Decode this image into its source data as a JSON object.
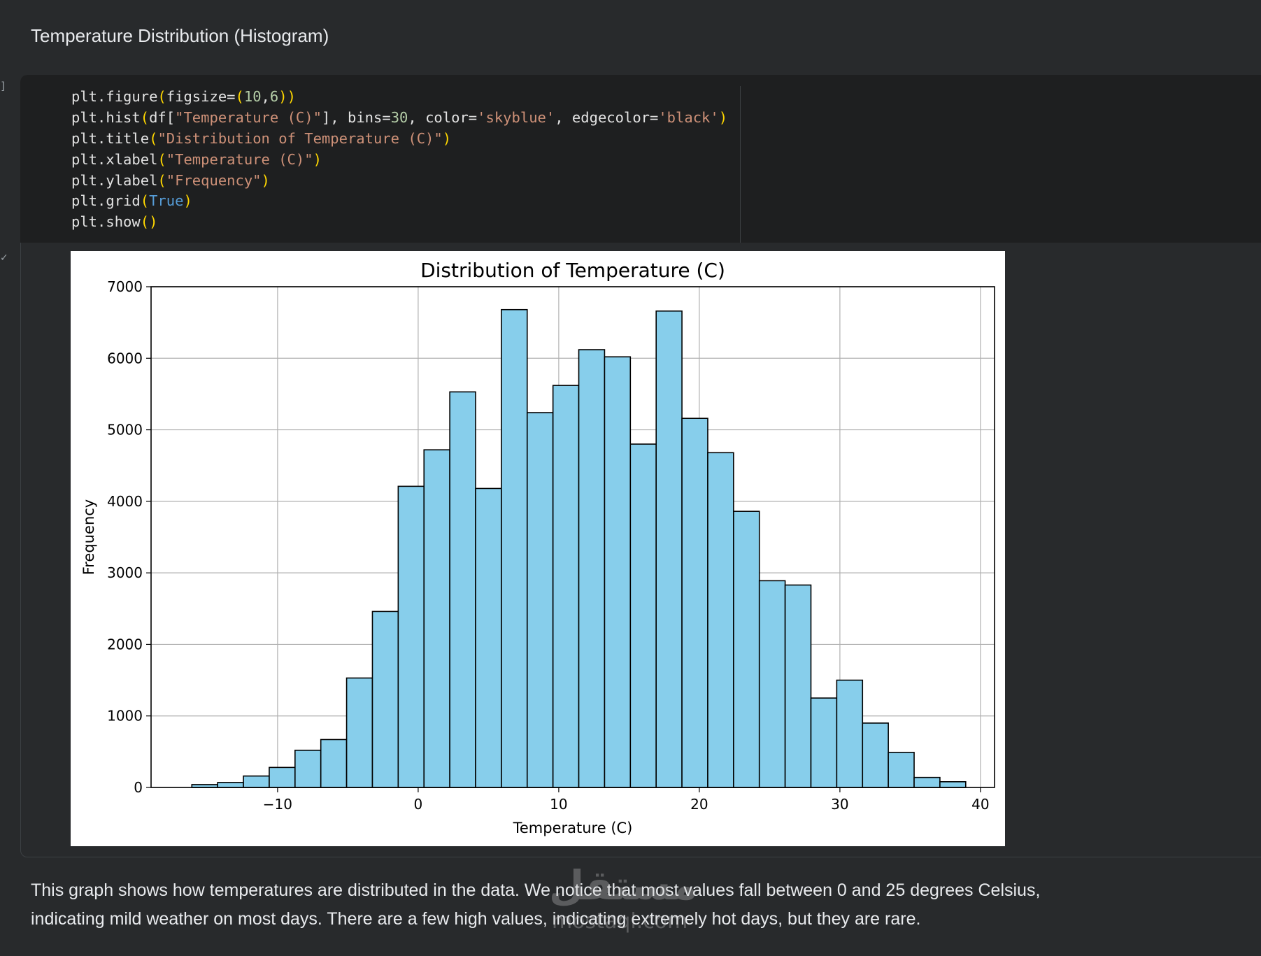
{
  "markdown": {
    "heading": "Temperature Distribution (Histogram)",
    "description_line1": "This graph shows how temperatures are distributed in the data. We notice that most values fall between 0 and 25 degrees Celsius,",
    "description_line2": "indicating mild weather on most days. There are a few high values, indicating extremely hot days, but they are rare."
  },
  "gutter": {
    "execution_bracket": "]",
    "check_mark": "✓"
  },
  "code_lines": [
    [
      {
        "t": "plt.figure"
      },
      {
        "t": "(",
        "c": "tok-paren"
      },
      {
        "t": "figsize="
      },
      {
        "t": "(",
        "c": "tok-paren"
      },
      {
        "t": "10",
        "c": "tok-num"
      },
      {
        "t": ","
      },
      {
        "t": "6",
        "c": "tok-num"
      },
      {
        "t": "))",
        "c": "tok-paren"
      }
    ],
    [
      {
        "t": "plt.hist"
      },
      {
        "t": "(",
        "c": "tok-paren"
      },
      {
        "t": "df["
      },
      {
        "t": "\"Temperature (C)\"",
        "c": "tok-str"
      },
      {
        "t": "], bins="
      },
      {
        "t": "30",
        "c": "tok-num"
      },
      {
        "t": ", color="
      },
      {
        "t": "'skyblue'",
        "c": "tok-str"
      },
      {
        "t": ", edgecolor="
      },
      {
        "t": "'black'",
        "c": "tok-str"
      },
      {
        "t": ")",
        "c": "tok-paren"
      }
    ],
    [
      {
        "t": "plt.title"
      },
      {
        "t": "(",
        "c": "tok-paren"
      },
      {
        "t": "\"Distribution of Temperature (C)\"",
        "c": "tok-str"
      },
      {
        "t": ")",
        "c": "tok-paren"
      }
    ],
    [
      {
        "t": "plt.xlabel"
      },
      {
        "t": "(",
        "c": "tok-paren"
      },
      {
        "t": "\"Temperature (C)\"",
        "c": "tok-str"
      },
      {
        "t": ")",
        "c": "tok-paren"
      }
    ],
    [
      {
        "t": "plt.ylabel"
      },
      {
        "t": "(",
        "c": "tok-paren"
      },
      {
        "t": "\"Frequency\"",
        "c": "tok-str"
      },
      {
        "t": ")",
        "c": "tok-paren"
      }
    ],
    [
      {
        "t": "plt.grid"
      },
      {
        "t": "(",
        "c": "tok-paren"
      },
      {
        "t": "True",
        "c": "tok-kw"
      },
      {
        "t": ")",
        "c": "tok-paren"
      }
    ],
    [
      {
        "t": "plt.show"
      },
      {
        "t": "()",
        "c": "tok-paren"
      }
    ]
  ],
  "watermark": {
    "arabic": "مستقل",
    "latin": "mostaql.com"
  },
  "colors": {
    "bar_fill": "#87ceeb",
    "bar_edge": "#000000",
    "grid": "#b0b0b0"
  },
  "chart_data": {
    "type": "bar",
    "title": "Distribution of Temperature (C)",
    "xlabel": "Temperature (C)",
    "ylabel": "Frequency",
    "bin_start": -16.1,
    "bin_width": 1.835,
    "values": [
      40,
      70,
      160,
      280,
      520,
      670,
      1530,
      2460,
      4210,
      4720,
      5530,
      4180,
      6680,
      5240,
      5620,
      6120,
      6020,
      4800,
      6660,
      5160,
      4680,
      3860,
      2890,
      2830,
      1250,
      1500,
      900,
      490,
      140,
      80
    ],
    "xlim": [
      -19,
      41
    ],
    "ylim": [
      0,
      7000
    ],
    "x_ticks": [
      -10,
      0,
      10,
      20,
      30,
      40
    ],
    "x_tick_labels": [
      "−10",
      "0",
      "10",
      "20",
      "30",
      "40"
    ],
    "y_ticks": [
      0,
      1000,
      2000,
      3000,
      4000,
      5000,
      6000,
      7000
    ],
    "y_tick_labels": [
      "0",
      "1000",
      "2000",
      "3000",
      "4000",
      "5000",
      "6000",
      "7000"
    ],
    "grid": true,
    "legend": false
  }
}
